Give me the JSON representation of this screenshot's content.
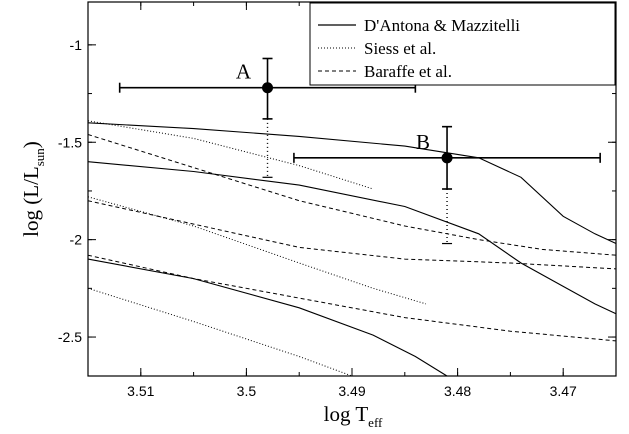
{
  "chart_data": {
    "type": "line",
    "xlabel": {
      "main": "log T",
      "sub": "eff"
    },
    "ylabel": {
      "main": "log (L/L",
      "sub": "sun",
      "close": ")"
    },
    "xlim": [
      3.515,
      3.465
    ],
    "ylim": [
      -2.7,
      -0.78
    ],
    "x_reversed": true,
    "xticks": [
      3.51,
      3.5,
      3.49,
      3.48,
      3.47
    ],
    "xtick_labels": [
      "3.51",
      "3.5",
      "3.49",
      "3.48",
      "3.47"
    ],
    "yticks": [
      -2.5,
      -2,
      -1.5,
      -1
    ],
    "ytick_labels": [
      "-2.5",
      "-2",
      "-1.5",
      "-1"
    ],
    "legend_position": "top-right",
    "legend": [
      {
        "label": "D'Antona & Mazzitelli",
        "style": "solid"
      },
      {
        "label": "Siess et al.",
        "style": "dotted"
      },
      {
        "label": "Baraffe et al.",
        "style": "dashed"
      }
    ],
    "series": [
      {
        "model": "solid",
        "points": [
          [
            3.515,
            -1.4
          ],
          [
            3.505,
            -1.43
          ],
          [
            3.495,
            -1.47
          ],
          [
            3.485,
            -1.52
          ],
          [
            3.478,
            -1.58
          ],
          [
            3.474,
            -1.68
          ],
          [
            3.47,
            -1.88
          ],
          [
            3.467,
            -1.97
          ],
          [
            3.465,
            -2.02
          ]
        ]
      },
      {
        "model": "solid",
        "points": [
          [
            3.515,
            -1.6
          ],
          [
            3.505,
            -1.65
          ],
          [
            3.495,
            -1.72
          ],
          [
            3.485,
            -1.83
          ],
          [
            3.478,
            -1.97
          ],
          [
            3.474,
            -2.12
          ],
          [
            3.47,
            -2.24
          ],
          [
            3.467,
            -2.33
          ],
          [
            3.465,
            -2.38
          ]
        ]
      },
      {
        "model": "solid",
        "points": [
          [
            3.515,
            -2.1
          ],
          [
            3.505,
            -2.2
          ],
          [
            3.495,
            -2.35
          ],
          [
            3.488,
            -2.49
          ],
          [
            3.484,
            -2.6
          ],
          [
            3.481,
            -2.7
          ]
        ]
      },
      {
        "model": "dotted",
        "points": [
          [
            3.515,
            -1.39
          ],
          [
            3.505,
            -1.48
          ],
          [
            3.495,
            -1.62
          ],
          [
            3.488,
            -1.74
          ]
        ]
      },
      {
        "model": "dotted",
        "points": [
          [
            3.515,
            -1.78
          ],
          [
            3.505,
            -1.93
          ],
          [
            3.495,
            -2.12
          ],
          [
            3.488,
            -2.25
          ],
          [
            3.483,
            -2.33
          ]
        ]
      },
      {
        "model": "dotted",
        "points": [
          [
            3.515,
            -2.25
          ],
          [
            3.505,
            -2.42
          ],
          [
            3.495,
            -2.6
          ],
          [
            3.49,
            -2.7
          ]
        ]
      },
      {
        "model": "dashed",
        "points": [
          [
            3.515,
            -1.46
          ],
          [
            3.505,
            -1.63
          ],
          [
            3.495,
            -1.8
          ],
          [
            3.485,
            -1.93
          ],
          [
            3.478,
            -2.0
          ],
          [
            3.472,
            -2.05
          ],
          [
            3.465,
            -2.08
          ]
        ]
      },
      {
        "model": "dashed",
        "points": [
          [
            3.515,
            -1.8
          ],
          [
            3.505,
            -1.92
          ],
          [
            3.495,
            -2.04
          ],
          [
            3.485,
            -2.1
          ],
          [
            3.475,
            -2.12
          ],
          [
            3.465,
            -2.15
          ]
        ]
      },
      {
        "model": "dashed",
        "points": [
          [
            3.515,
            -2.08
          ],
          [
            3.505,
            -2.2
          ],
          [
            3.495,
            -2.3
          ],
          [
            3.485,
            -2.4
          ],
          [
            3.475,
            -2.47
          ],
          [
            3.465,
            -2.52
          ]
        ]
      }
    ],
    "data_points": [
      {
        "label": "A",
        "x": 3.498,
        "y": -1.22,
        "x_err": [
          3.512,
          3.484
        ],
        "y_err_solid": [
          -1.07,
          -1.38
        ],
        "y_err_dotted": [
          -1.38,
          -1.68
        ]
      },
      {
        "label": "B",
        "x": 3.481,
        "y": -1.58,
        "x_err": [
          3.4955,
          3.4665
        ],
        "y_err_solid": [
          -1.42,
          -1.74
        ],
        "y_err_dotted": [
          -1.74,
          -2.02
        ]
      }
    ]
  }
}
